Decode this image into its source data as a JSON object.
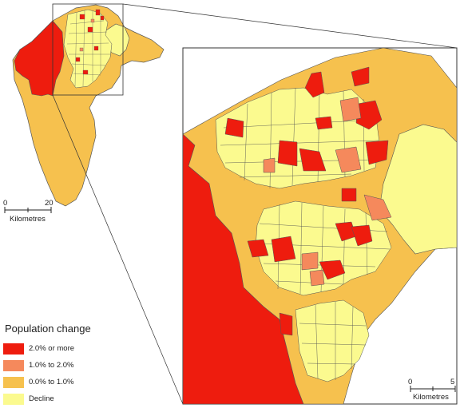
{
  "legend": {
    "title": "Population change",
    "items": [
      {
        "label": "2.0% or more",
        "color": "#ee1c0e"
      },
      {
        "label": "1.0% to 2.0%",
        "color": "#f5895c"
      },
      {
        "label": "0.0% to 1.0%",
        "color": "#f6c14e"
      },
      {
        "label": "Decline",
        "color": "#fbfa8f"
      }
    ]
  },
  "overview_scale": {
    "start": "0",
    "end": "20",
    "unit": "Kilometres"
  },
  "inset_scale": {
    "start": "0",
    "end": "5",
    "unit": "Kilometres"
  },
  "colors": {
    "outline": "#555555",
    "frame": "#333333",
    "boundary": "#6b5b2a"
  }
}
